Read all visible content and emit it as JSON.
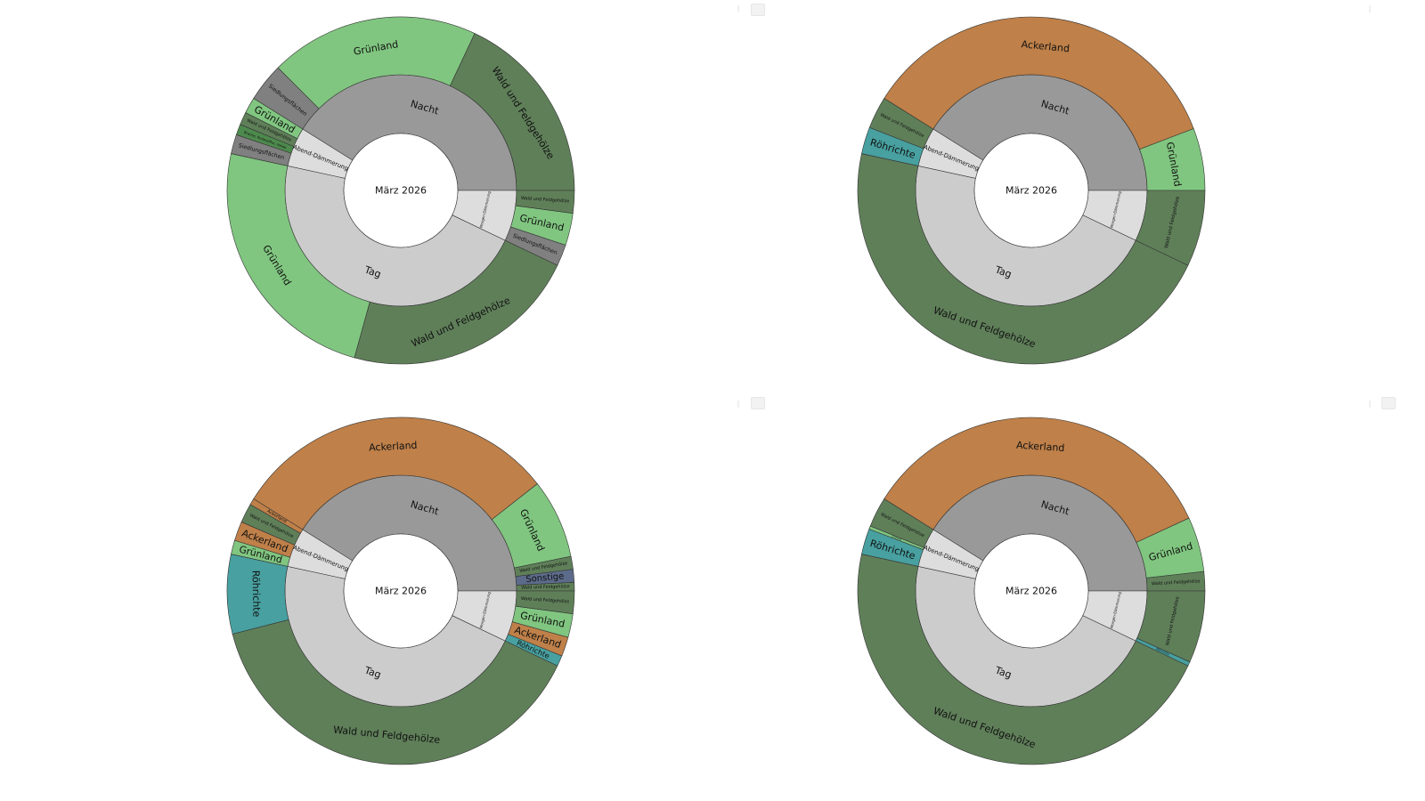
{
  "colors": {
    "Nacht": "#999999",
    "Tag": "#cccccc",
    "Dämmerung": "#dddddd",
    "Ackerland": "#bf8049",
    "Grünland": "#80c680",
    "Wald und Feldgehölze": "#5f7f59",
    "Siedlungsflächen": "#808080",
    "Röhrichte": "#48a0a0",
    "Brache, Ruderalflur, Heide": "#4d8a4d",
    "Gewässer": "#4f79a8",
    "Sonstige": "#5c6b8a"
  },
  "icons": [
    "toolbar-camera-icon"
  ],
  "chart_data": [
    {
      "type": "sunburst",
      "center_label": "März 2026",
      "start_angle_deg": 0,
      "direction": "counterclockwise",
      "rings": [
        {
          "label": "Nacht",
          "value": 0.411,
          "children": [
            {
              "label": "Wald und Feldgehölze",
              "value": 0.18
            },
            {
              "label": "Grünland",
              "value": 0.195
            },
            {
              "label": "Siedlungsflächen",
              "value": 0.036
            }
          ]
        },
        {
          "label": "Abend-Dämmerung",
          "value": 0.055,
          "children": [
            {
              "label": "Grünland",
              "value": 0.015
            },
            {
              "label": "Wald und Feldgehölze",
              "value": 0.012
            },
            {
              "label": "Brache, Ruderalflur, Heide",
              "value": 0.01
            },
            {
              "label": "Siedlungsflächen",
              "value": 0.018
            }
          ]
        },
        {
          "label": "Tag",
          "value": 0.463,
          "children": [
            {
              "label": "Grünland",
              "value": 0.241
            },
            {
              "label": "Wald und Feldgehölze",
              "value": 0.222
            }
          ]
        },
        {
          "label": "Morgen-Dämmerung",
          "value": 0.071,
          "children": [
            {
              "label": "Siedlungsflächen",
              "value": 0.02
            },
            {
              "label": "Grünland",
              "value": 0.03
            },
            {
              "label": "Wald und Feldgehölze",
              "value": 0.021
            }
          ]
        }
      ]
    },
    {
      "type": "sunburst",
      "center_label": "März 2026",
      "start_angle_deg": 0,
      "direction": "counterclockwise",
      "rings": [
        {
          "label": "Nacht",
          "value": 0.411,
          "children": [
            {
              "label": "Grünland",
              "value": 0.058
            },
            {
              "label": "Ackerland",
              "value": 0.353
            }
          ]
        },
        {
          "label": "Abend-Dämmerung",
          "value": 0.055,
          "children": [
            {
              "label": "Wald und Feldgehölze",
              "value": 0.03
            },
            {
              "label": "Röhrichte",
              "value": 0.025
            }
          ]
        },
        {
          "label": "Tag",
          "value": 0.463,
          "children": [
            {
              "label": "Wald und Feldgehölze",
              "value": 0.463
            }
          ]
        },
        {
          "label": "Morgen-Dämmerung",
          "value": 0.071,
          "children": [
            {
              "label": "Wald und Feldgehölze",
              "value": 0.071
            }
          ]
        }
      ]
    },
    {
      "type": "sunburst",
      "center_label": "März 2026",
      "start_angle_deg": 0,
      "direction": "counterclockwise",
      "rings": [
        {
          "label": "Nacht",
          "value": 0.411,
          "children": [
            {
              "label": "Wald und Feldgehölze",
              "value": 0.008
            },
            {
              "label": "Sonstige",
              "value": 0.012
            },
            {
              "label": "Wald und Feldgehölze",
              "value": 0.012
            },
            {
              "label": "Grünland",
              "value": 0.074
            },
            {
              "label": "Ackerland",
              "value": 0.305
            }
          ]
        },
        {
          "label": "Abend-Dämmerung",
          "value": 0.055,
          "children": [
            {
              "label": "Ackerland",
              "value": 0.006
            },
            {
              "label": "Wald und Feldgehölze",
              "value": 0.018
            },
            {
              "label": "Ackerland",
              "value": 0.018
            },
            {
              "label": "Grünland",
              "value": 0.013
            }
          ]
        },
        {
          "label": "Tag",
          "value": 0.463,
          "children": [
            {
              "label": "Röhrichte",
              "value": 0.074
            },
            {
              "label": "Wald und Feldgehölze",
              "value": 0.389
            }
          ]
        },
        {
          "label": "Morgen-Dämmerung",
          "value": 0.071,
          "children": [
            {
              "label": "Röhrichte",
              "value": 0.01
            },
            {
              "label": "Ackerland",
              "value": 0.018
            },
            {
              "label": "Grünland",
              "value": 0.022
            },
            {
              "label": "Wald und Feldgehölze",
              "value": 0.021
            }
          ]
        }
      ]
    },
    {
      "type": "sunburst",
      "center_label": "März 2026",
      "start_angle_deg": 0,
      "direction": "counterclockwise",
      "rings": [
        {
          "label": "Nacht",
          "value": 0.411,
          "children": [
            {
              "label": "Wald und Feldgehölze",
              "value": 0.018
            },
            {
              "label": "Grünland",
              "value": 0.051
            },
            {
              "label": "Ackerland",
              "value": 0.342
            }
          ]
        },
        {
          "label": "Abend-Dämmerung",
          "value": 0.055,
          "children": [
            {
              "label": "Wald und Feldgehölze",
              "value": 0.028
            },
            {
              "label": "Grünland",
              "value": 0.003
            },
            {
              "label": "Röhrichte",
              "value": 0.024
            }
          ]
        },
        {
          "label": "Tag",
          "value": 0.463,
          "children": [
            {
              "label": "Wald und Feldgehölze",
              "value": 0.463
            }
          ]
        },
        {
          "label": "Morgen-Dämmerung",
          "value": 0.071,
          "children": [
            {
              "label": "Röhrichte",
              "value": 0.004
            },
            {
              "label": "Wald und Feldgehölze",
              "value": 0.067
            }
          ]
        }
      ]
    }
  ]
}
